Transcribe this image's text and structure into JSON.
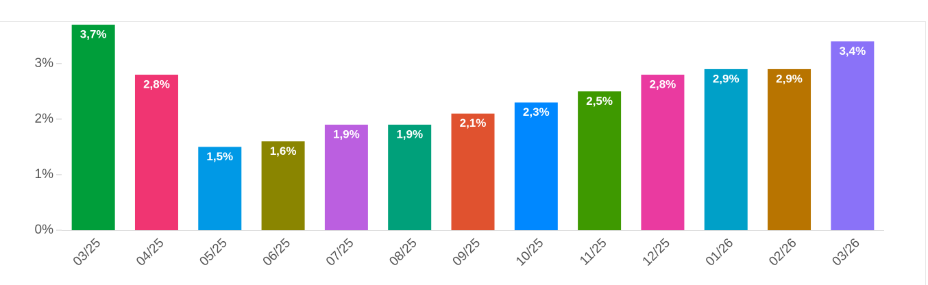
{
  "chart_data": {
    "type": "bar",
    "categories": [
      "03/25",
      "04/25",
      "05/25",
      "06/25",
      "07/25",
      "08/25",
      "09/25",
      "10/25",
      "11/25",
      "12/25",
      "01/26",
      "02/26",
      "03/26"
    ],
    "values": [
      3.7,
      2.8,
      1.5,
      1.6,
      1.9,
      1.9,
      2.1,
      2.3,
      2.5,
      2.8,
      2.9,
      2.9,
      3.4
    ],
    "value_labels": [
      "3,7%",
      "2,8%",
      "1,5%",
      "1,6%",
      "1,9%",
      "1,9%",
      "2,1%",
      "2,3%",
      "2,5%",
      "2,8%",
      "2,9%",
      "2,9%",
      "3,4%"
    ],
    "colors": [
      "#009e3a",
      "#f03572",
      "#0099e6",
      "#8a8500",
      "#bb5fe0",
      "#00a07a",
      "#e0522f",
      "#0088ff",
      "#3e9900",
      "#ea3aa0",
      "#00a0c8",
      "#b87400",
      "#8a72f8"
    ],
    "ylim": [
      0,
      3.75
    ],
    "yticks": [
      {
        "value": 0,
        "label": "0%"
      },
      {
        "value": 1,
        "label": "1%"
      },
      {
        "value": 2,
        "label": "2%"
      },
      {
        "value": 3,
        "label": "3%"
      }
    ]
  }
}
